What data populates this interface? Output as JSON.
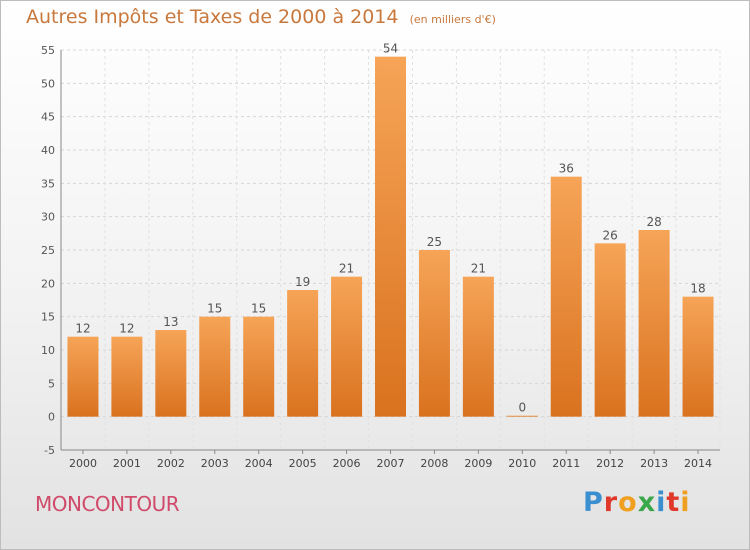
{
  "chart_data": {
    "type": "bar",
    "title": "Autres Impôts et Taxes de 2000 à 2014",
    "subtitle": "(en milliers d'€)",
    "categories": [
      "2000",
      "2001",
      "2002",
      "2003",
      "2004",
      "2005",
      "2006",
      "2007",
      "2008",
      "2009",
      "2010",
      "2011",
      "2012",
      "2013",
      "2014"
    ],
    "values": [
      12,
      12,
      13,
      15,
      15,
      19,
      21,
      54,
      25,
      21,
      0,
      36,
      26,
      28,
      18
    ],
    "ylim": [
      -5,
      55
    ],
    "yticks": [
      -5,
      0,
      5,
      10,
      15,
      20,
      25,
      30,
      35,
      40,
      45,
      50,
      55
    ],
    "xlabel": "",
    "ylabel": "",
    "grid": true,
    "bar_color": "#f0913a"
  },
  "footer": {
    "commune": "MONCONTOUR",
    "brand_letters": [
      {
        "ch": "P",
        "color": "#3a8fd0"
      },
      {
        "ch": "r",
        "color": "#e0392b"
      },
      {
        "ch": "o",
        "color": "#f0a020"
      },
      {
        "ch": "x",
        "color": "#3aa84a"
      },
      {
        "ch": "i",
        "color": "#3a8fd0"
      },
      {
        "ch": "t",
        "color": "#e0392b"
      },
      {
        "ch": "i",
        "color": "#f0a020"
      }
    ]
  }
}
